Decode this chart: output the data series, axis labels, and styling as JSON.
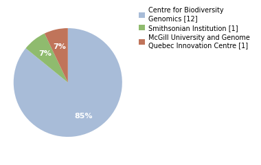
{
  "slices": [
    85,
    7,
    7
  ],
  "colors": [
    "#a8bcd8",
    "#8fbb6e",
    "#c0745a"
  ],
  "autopct_values": [
    "85%",
    "7%",
    "7%"
  ],
  "legend_labels": [
    "Centre for Biodiversity\nGenomics [12]",
    "Smithsonian Institution [1]",
    "McGill University and Genome\nQuebec Innovation Centre [1]"
  ],
  "background_color": "#ffffff",
  "startangle": 90,
  "legend_fontsize": 7.0,
  "autopct_fontsize": 8
}
